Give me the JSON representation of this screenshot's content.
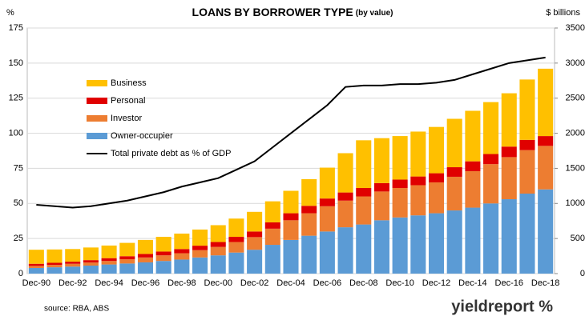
{
  "chart_data": {
    "type": "bar",
    "title": "LOANS BY BORROWER TYPE",
    "subtitle": "(by value)",
    "y_label": "%",
    "y2_label": "$ billions",
    "source": "source: RBA, ABS",
    "logo": "yieldreport %",
    "stacked": true,
    "grid": true,
    "categories": [
      "Dec-90",
      null,
      "Dec-92",
      null,
      "Dec-94",
      null,
      "Dec-96",
      null,
      "Dec-98",
      null,
      "Dec-00",
      null,
      "Dec-02",
      null,
      "Dec-04",
      null,
      "Dec-06",
      null,
      "Dec-08",
      null,
      "Dec-10",
      null,
      "Dec-12",
      null,
      "Dec-14",
      null,
      "Dec-16",
      null,
      "Dec-18"
    ],
    "ylim": [
      0,
      175
    ],
    "yticks": [
      0,
      25,
      50,
      75,
      100,
      125,
      150,
      175
    ],
    "y2lim": [
      0,
      3500
    ],
    "y2ticks": [
      0,
      500,
      1000,
      1500,
      2000,
      2500,
      3000,
      3500
    ],
    "series": [
      {
        "name": "Owner-occupier",
        "color": "#5b9bd5",
        "axis": "y2",
        "values": [
          80,
          90,
          100,
          114,
          130,
          144,
          160,
          180,
          200,
          230,
          260,
          300,
          340,
          410,
          480,
          540,
          600,
          660,
          700,
          760,
          800,
          830,
          860,
          900,
          940,
          1000,
          1060,
          1140,
          1200
        ]
      },
      {
        "name": "Investor",
        "color": "#ed7d31",
        "axis": "y2",
        "values": [
          30,
          34,
          40,
          44,
          50,
          60,
          70,
          80,
          90,
          104,
          120,
          150,
          180,
          230,
          280,
          320,
          360,
          380,
          400,
          410,
          420,
          430,
          440,
          480,
          520,
          560,
          600,
          620,
          620
        ]
      },
      {
        "name": "Personal",
        "color": "#e00000",
        "axis": "y2",
        "values": [
          30,
          30,
          30,
          34,
          40,
          44,
          50,
          54,
          60,
          64,
          70,
          74,
          80,
          90,
          100,
          106,
          110,
          116,
          120,
          120,
          120,
          124,
          130,
          136,
          140,
          144,
          150,
          146,
          140
        ]
      },
      {
        "name": "Business",
        "color": "#ffc000",
        "axis": "y2",
        "values": [
          200,
          190,
          180,
          180,
          180,
          190,
          200,
          210,
          220,
          230,
          240,
          260,
          280,
          300,
          320,
          380,
          440,
          560,
          680,
          640,
          620,
          640,
          660,
          690,
          720,
          740,
          760,
          860,
          960
        ]
      },
      {
        "name": "Total private debt as % of GDP",
        "color": "#000000",
        "type": "line",
        "values": [
          49,
          48,
          47,
          48,
          50,
          52,
          55,
          58,
          62,
          65,
          68,
          74,
          80,
          90,
          100,
          110,
          120,
          133,
          134,
          134,
          135,
          135,
          136,
          138,
          142,
          146,
          150,
          152,
          154
        ]
      }
    ]
  }
}
